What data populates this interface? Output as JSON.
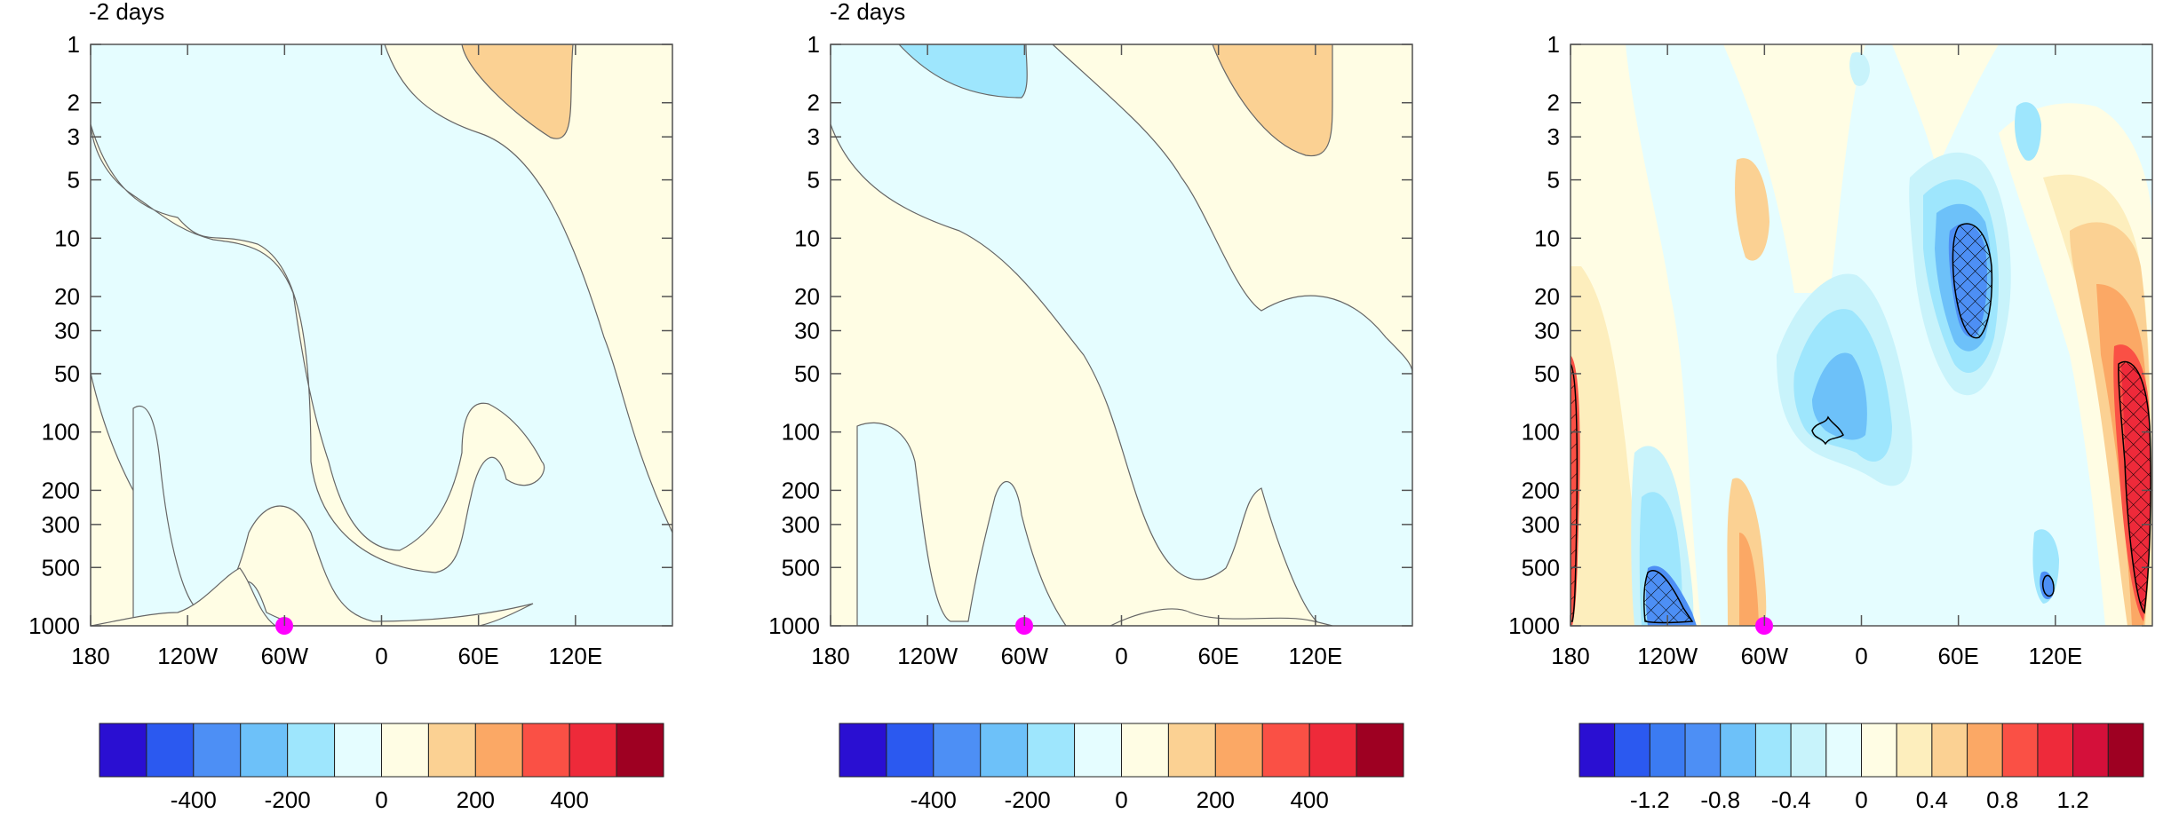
{
  "chart_data": [
    {
      "type": "heatmap",
      "title": "-2 days",
      "xlabel": "",
      "ylabel": "",
      "x_ticks": [
        "180",
        "120W",
        "60W",
        "0",
        "60E",
        "120E"
      ],
      "x_tick_values": [
        -180,
        -120,
        -60,
        0,
        60,
        120
      ],
      "xlim": [
        -180,
        180
      ],
      "y_ticks": [
        "1",
        "2",
        "3",
        "5",
        "10",
        "20",
        "30",
        "50",
        "100",
        "200",
        "300",
        "500",
        "1000"
      ],
      "y_tick_values": [
        1,
        2,
        3,
        5,
        10,
        20,
        30,
        50,
        100,
        200,
        300,
        500,
        1000
      ],
      "ylim": [
        1000,
        1
      ],
      "y_scale": "log",
      "marker": {
        "x": -60,
        "y": 1000,
        "color": "#ff00ff"
      },
      "colorbar": {
        "colors": [
          "#2a0fd2",
          "#2b59f0",
          "#4d8ff5",
          "#6dc1f9",
          "#9ee6fd",
          "#e5fdff",
          "#fffde4",
          "#fbd193",
          "#fba865",
          "#fa5045",
          "#ee2a3a",
          "#9e0022"
        ],
        "labels": [
          "-400",
          "-200",
          "0",
          "200",
          "400"
        ],
        "label_positions": [
          2,
          4,
          6,
          8,
          10
        ]
      },
      "contour_hatching": false
    },
    {
      "type": "heatmap",
      "title": "-2 days",
      "xlabel": "",
      "ylabel": "",
      "x_ticks": [
        "180",
        "120W",
        "60W",
        "0",
        "60E",
        "120E"
      ],
      "x_tick_values": [
        -180,
        -120,
        -60,
        0,
        60,
        120
      ],
      "xlim": [
        -180,
        180
      ],
      "y_ticks": [
        "1",
        "2",
        "3",
        "5",
        "10",
        "20",
        "30",
        "50",
        "100",
        "200",
        "300",
        "500",
        "1000"
      ],
      "y_tick_values": [
        1,
        2,
        3,
        5,
        10,
        20,
        30,
        50,
        100,
        200,
        300,
        500,
        1000
      ],
      "ylim": [
        1000,
        1
      ],
      "y_scale": "log",
      "marker": {
        "x": -60,
        "y": 1000,
        "color": "#ff00ff"
      },
      "colorbar": {
        "colors": [
          "#2a0fd2",
          "#2b59f0",
          "#4d8ff5",
          "#6dc1f9",
          "#9ee6fd",
          "#e5fdff",
          "#fffde4",
          "#fbd193",
          "#fba865",
          "#fa5045",
          "#ee2a3a",
          "#9e0022"
        ],
        "labels": [
          "-400",
          "-200",
          "0",
          "200",
          "400"
        ],
        "label_positions": [
          2,
          4,
          6,
          8,
          10
        ]
      },
      "contour_hatching": false
    },
    {
      "type": "heatmap",
      "title": "",
      "xlabel": "",
      "ylabel": "",
      "x_ticks": [
        "180",
        "120W",
        "60W",
        "0",
        "60E",
        "120E"
      ],
      "x_tick_values": [
        -180,
        -120,
        -60,
        0,
        60,
        120
      ],
      "xlim": [
        -180,
        180
      ],
      "y_ticks": [
        "1",
        "2",
        "3",
        "5",
        "10",
        "20",
        "30",
        "50",
        "100",
        "200",
        "300",
        "500",
        "1000"
      ],
      "y_tick_values": [
        1,
        2,
        3,
        5,
        10,
        20,
        30,
        50,
        100,
        200,
        300,
        500,
        1000
      ],
      "ylim": [
        1000,
        1
      ],
      "y_scale": "log",
      "marker": {
        "x": -60,
        "y": 1000,
        "color": "#ff00ff"
      },
      "colorbar": {
        "colors": [
          "#2a0fd2",
          "#2b59f0",
          "#3b7bf2",
          "#4d8ff5",
          "#6dc1f9",
          "#9ee6fd",
          "#c8f3fb",
          "#e5fdff",
          "#fffde4",
          "#fdeebd",
          "#fbd193",
          "#fba865",
          "#fa5045",
          "#ee2a3a",
          "#d4103a",
          "#9e0022"
        ],
        "labels": [
          "-1.2",
          "-0.8",
          "-0.4",
          "0",
          "0.4",
          "0.8",
          "1.2"
        ],
        "label_positions": [
          2,
          4,
          6,
          8,
          10,
          12,
          14
        ]
      },
      "contour_hatching": true
    }
  ]
}
